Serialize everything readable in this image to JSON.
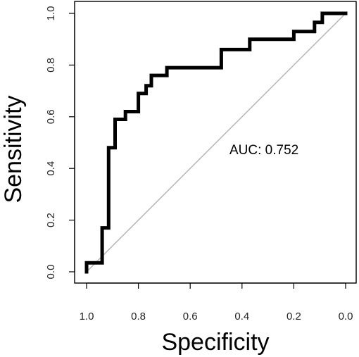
{
  "chart_data": {
    "type": "line",
    "title": "",
    "xlabel": "Specificity",
    "ylabel": "Sensitivity",
    "xlim": [
      1.0,
      0.0
    ],
    "ylim": [
      0.0,
      1.0
    ],
    "x_reversed": true,
    "x_ticks": [
      "1.0",
      "0.8",
      "0.6",
      "0.4",
      "0.2",
      "0.0"
    ],
    "y_ticks": [
      "0.0",
      "0.2",
      "0.4",
      "0.6",
      "0.8",
      "1.0"
    ],
    "grid": false,
    "legend": "none",
    "annotation": "AUC: 0.752",
    "reference_line": {
      "from": [
        1.0,
        0.0
      ],
      "to": [
        0.0,
        1.0
      ],
      "color": "#b3b3b3"
    },
    "series": [
      {
        "color": "#000000",
        "x": [
          1.0,
          1.0,
          0.94,
          0.94,
          0.915,
          0.915,
          0.89,
          0.89,
          0.85,
          0.85,
          0.8,
          0.8,
          0.77,
          0.77,
          0.75,
          0.75,
          0.69,
          0.69,
          0.61,
          0.61,
          0.48,
          0.48,
          0.37,
          0.37,
          0.2,
          0.2,
          0.12,
          0.12,
          0.09,
          0.09,
          0.0
        ],
        "y": [
          0.0,
          0.035,
          0.035,
          0.17,
          0.17,
          0.48,
          0.48,
          0.59,
          0.59,
          0.62,
          0.62,
          0.69,
          0.69,
          0.72,
          0.72,
          0.76,
          0.76,
          0.79,
          0.79,
          0.79,
          0.79,
          0.86,
          0.86,
          0.9,
          0.9,
          0.93,
          0.93,
          0.965,
          0.965,
          1.0,
          1.0
        ]
      }
    ]
  }
}
